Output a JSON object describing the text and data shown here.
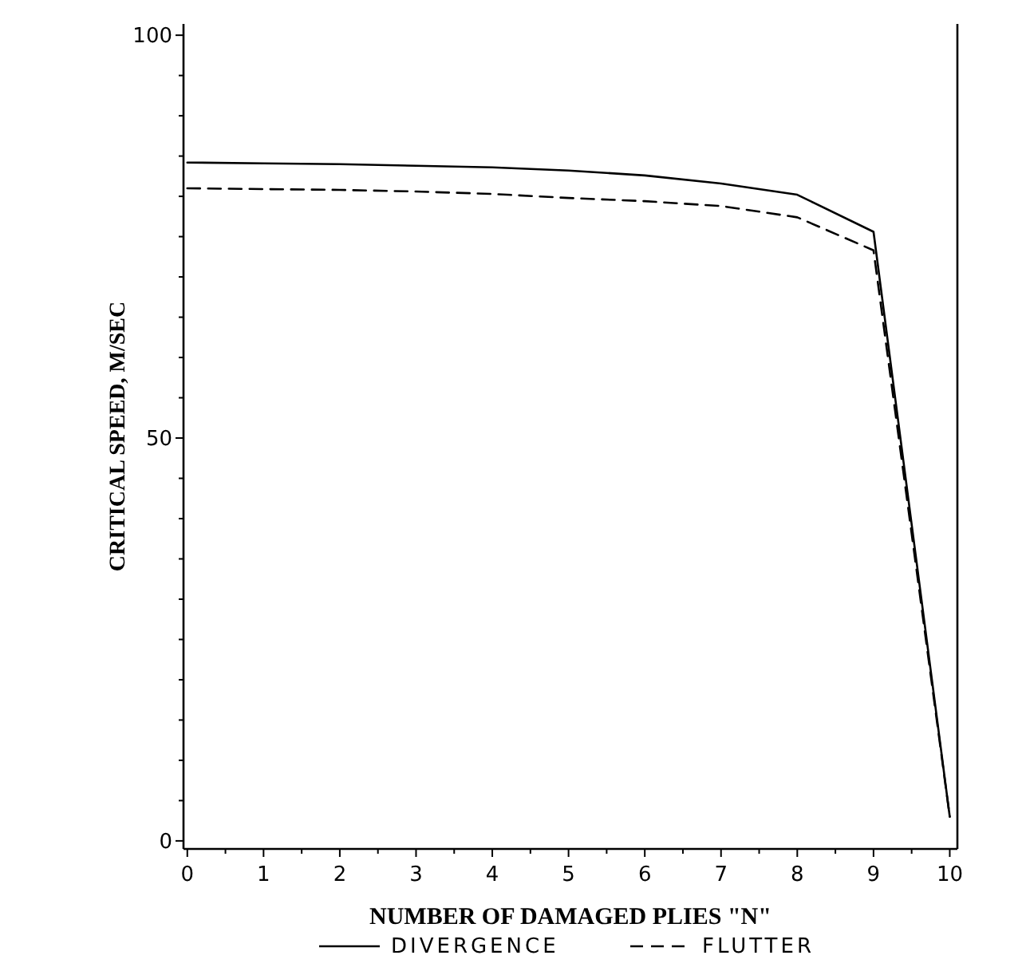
{
  "chart_data": {
    "type": "line",
    "xlabel": "NUMBER OF DAMAGED PLIES \"N\"",
    "ylabel": "CRITICAL SPEED, M/SEC",
    "x": [
      0,
      1,
      2,
      3,
      4,
      5,
      6,
      7,
      8,
      9,
      10
    ],
    "series": [
      {
        "name": "DIVERGENCE",
        "color": "#000000",
        "line_style": "solid",
        "values": [
          84.2,
          84.1,
          84.0,
          83.8,
          83.6,
          83.2,
          82.6,
          81.6,
          80.2,
          75.6,
          3
        ]
      },
      {
        "name": "FLUTTER",
        "color": "#000000",
        "line_style": "dashed",
        "values": [
          81,
          80.9,
          80.8,
          80.6,
          80.3,
          79.8,
          79.4,
          78.8,
          77.4,
          73.3,
          3
        ]
      }
    ],
    "xlim": [
      -0.05,
      10.1
    ],
    "ylim": [
      -1,
      101.4
    ],
    "xticks": [
      0,
      {
        "value": 0.5,
        "label": null
      },
      1,
      {
        "value": 1.5,
        "label": null
      },
      2,
      {
        "value": 2.5,
        "label": null
      },
      3,
      {
        "value": 3.5,
        "label": null
      },
      4,
      {
        "value": 4.5,
        "label": null
      },
      5,
      {
        "value": 5.5,
        "label": null
      },
      6,
      {
        "value": 6.5,
        "label": null
      },
      7,
      {
        "value": 7.5,
        "label": null
      },
      8,
      {
        "value": 8.5,
        "label": null
      },
      9,
      {
        "value": 9.5,
        "label": null
      },
      10
    ],
    "yticks": [
      0,
      {
        "value": 5,
        "label": null
      },
      {
        "value": 10,
        "label": null
      },
      {
        "value": 15,
        "label": null
      },
      {
        "value": 20,
        "label": null
      },
      {
        "value": 25,
        "label": null
      },
      {
        "value": 30,
        "label": null
      },
      {
        "value": 35,
        "label": null
      },
      {
        "value": 40,
        "label": null
      },
      {
        "value": 45,
        "label": null
      },
      50,
      {
        "value": 55,
        "label": null
      },
      {
        "value": 60,
        "label": null
      },
      {
        "value": 65,
        "label": null
      },
      {
        "value": 70,
        "label": null
      },
      {
        "value": 75,
        "label": null
      },
      {
        "value": 80,
        "label": null
      },
      {
        "value": 85,
        "label": null
      },
      {
        "value": 90,
        "label": null
      },
      {
        "value": 95,
        "label": null
      },
      100
    ],
    "grid": false,
    "legend": "bottom",
    "marker": "none"
  }
}
